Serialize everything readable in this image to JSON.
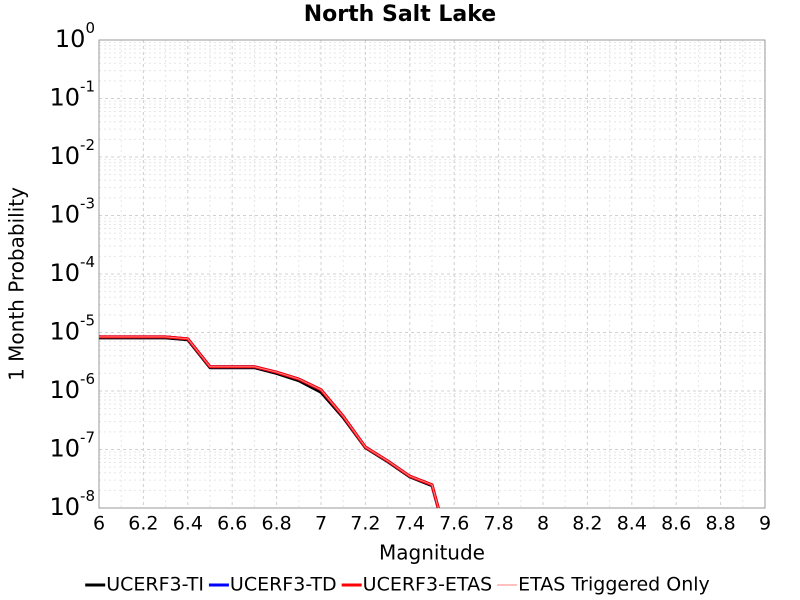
{
  "chart_data": {
    "type": "line",
    "title": "North Salt Lake",
    "x_label": "Magnitude",
    "y_label": "1 Month Probability",
    "x": [
      6.0,
      6.1,
      6.2,
      6.3,
      6.4,
      6.5,
      6.6,
      6.7,
      6.8,
      6.9,
      7.0,
      7.1,
      7.2,
      7.3,
      7.4,
      7.5,
      7.6
    ],
    "series": [
      {
        "name": "UCERF3-TI",
        "color": "#000000",
        "width": 3,
        "values": [
          8.1e-06,
          8.1e-06,
          8.1e-06,
          8.1e-06,
          7.5e-06,
          2.5e-06,
          2.5e-06,
          2.5e-06,
          2e-06,
          1.5e-06,
          9.5e-07,
          3.5e-07,
          1.07e-07,
          6.2e-08,
          3.4e-08,
          2.4e-08,
          1e-09
        ]
      },
      {
        "name": "UCERF3-TD",
        "color": "#0000ff",
        "width": 3,
        "values": [
          8.4e-06,
          8.4e-06,
          8.4e-06,
          8.4e-06,
          7.8e-06,
          2.6e-06,
          2.6e-06,
          2.6e-06,
          2.1e-06,
          1.6e-06,
          1.05e-06,
          3.7e-07,
          1.1e-07,
          6.4e-08,
          3.5e-08,
          2.5e-08,
          1e-09
        ]
      },
      {
        "name": "UCERF3-ETAS",
        "color": "#ff0000",
        "width": 3,
        "values": [
          8.4e-06,
          8.4e-06,
          8.4e-06,
          8.4e-06,
          7.8e-06,
          2.6e-06,
          2.6e-06,
          2.6e-06,
          2.1e-06,
          1.6e-06,
          1.05e-06,
          3.7e-07,
          1.1e-07,
          6.4e-08,
          3.5e-08,
          2.5e-08,
          1e-09
        ]
      },
      {
        "name": "ETAS Triggered Only",
        "color": "#ff8080",
        "width": 1,
        "values": [
          8.4e-06,
          8.4e-06,
          8.4e-06,
          8.4e-06,
          7.8e-06,
          2.6e-06,
          2.6e-06,
          2.6e-06,
          2.1e-06,
          1.6e-06,
          1.05e-06,
          3.7e-07,
          1.1e-07,
          6.4e-08,
          3.5e-08,
          2.5e-08,
          1e-09
        ]
      }
    ],
    "xlim": [
      6,
      9
    ],
    "xticks": [
      6,
      6.2,
      6.4,
      6.6,
      6.8,
      7,
      7.2,
      7.4,
      7.6,
      7.8,
      8,
      8.2,
      8.4,
      8.6,
      8.8,
      9
    ],
    "ylim": [
      1e-08,
      1
    ],
    "ylog": true,
    "yticks": [
      {
        "value": 1e-08,
        "label": "10^-8"
      },
      {
        "value": 1e-07,
        "label": "10^-7"
      },
      {
        "value": 1e-06,
        "label": "10^-6"
      },
      {
        "value": 1e-05,
        "label": "10^-5"
      },
      {
        "value": 0.0001,
        "label": "10^-4"
      },
      {
        "value": 0.001,
        "label": "10^-3"
      },
      {
        "value": 0.01,
        "label": "10^-2"
      },
      {
        "value": 0.1,
        "label": "10^-1"
      },
      {
        "value": 1,
        "label": "10^0"
      }
    ],
    "grid": true,
    "legend": "bottom"
  }
}
